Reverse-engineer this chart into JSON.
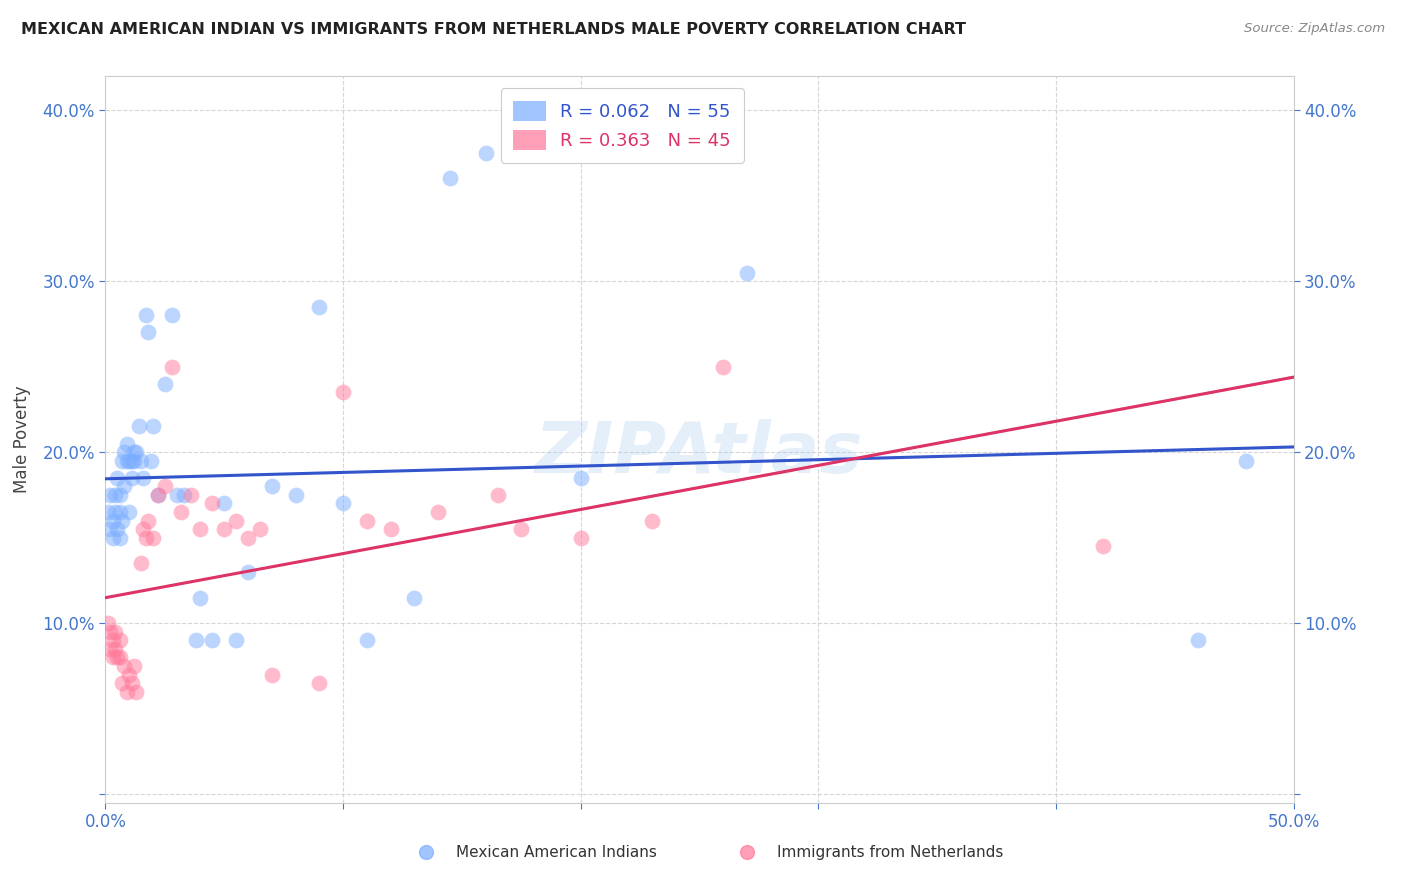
{
  "title": "MEXICAN AMERICAN INDIAN VS IMMIGRANTS FROM NETHERLANDS MALE POVERTY CORRELATION CHART",
  "source": "Source: ZipAtlas.com",
  "ylabel_label": "Male Poverty",
  "xlim": [
    0.0,
    0.5
  ],
  "ylim": [
    -0.005,
    0.42
  ],
  "xtick_positions": [
    0.0,
    0.1,
    0.2,
    0.3,
    0.4,
    0.5
  ],
  "xticklabels": [
    "0.0%",
    "",
    "",
    "",
    "",
    "50.0%"
  ],
  "ytick_positions": [
    0.0,
    0.1,
    0.2,
    0.3,
    0.4
  ],
  "yticklabels": [
    "",
    "10.0%",
    "20.0%",
    "30.0%",
    "40.0%"
  ],
  "blue_color": "#7aadff",
  "pink_color": "#ff7799",
  "trendline_blue_color": "#3355cc",
  "trendline_pink_color": "#dd3366",
  "trendline_dashed_color": "#ccbbbb",
  "watermark": "ZIPAtlas",
  "legend_blue_R": "0.062",
  "legend_blue_N": "55",
  "legend_pink_R": "0.363",
  "legend_pink_N": "45",
  "legend_label_blue": "Mexican American Indians",
  "legend_label_pink": "Immigrants from Netherlands",
  "blue_x": [
    0.001,
    0.002,
    0.002,
    0.003,
    0.003,
    0.004,
    0.004,
    0.005,
    0.005,
    0.006,
    0.006,
    0.006,
    0.007,
    0.007,
    0.008,
    0.008,
    0.009,
    0.009,
    0.01,
    0.01,
    0.011,
    0.011,
    0.012,
    0.012,
    0.013,
    0.014,
    0.015,
    0.016,
    0.017,
    0.018,
    0.019,
    0.02,
    0.022,
    0.025,
    0.028,
    0.03,
    0.033,
    0.038,
    0.04,
    0.045,
    0.05,
    0.055,
    0.06,
    0.07,
    0.08,
    0.09,
    0.1,
    0.11,
    0.13,
    0.145,
    0.16,
    0.2,
    0.27,
    0.46,
    0.48
  ],
  "blue_y": [
    0.165,
    0.175,
    0.155,
    0.15,
    0.16,
    0.165,
    0.175,
    0.185,
    0.155,
    0.15,
    0.165,
    0.175,
    0.16,
    0.195,
    0.2,
    0.18,
    0.195,
    0.205,
    0.165,
    0.195,
    0.195,
    0.185,
    0.2,
    0.195,
    0.2,
    0.215,
    0.195,
    0.185,
    0.28,
    0.27,
    0.195,
    0.215,
    0.175,
    0.24,
    0.28,
    0.175,
    0.175,
    0.09,
    0.115,
    0.09,
    0.17,
    0.09,
    0.13,
    0.18,
    0.175,
    0.285,
    0.17,
    0.09,
    0.115,
    0.36,
    0.375,
    0.185,
    0.305,
    0.09,
    0.195
  ],
  "pink_x": [
    0.001,
    0.002,
    0.002,
    0.003,
    0.003,
    0.004,
    0.004,
    0.005,
    0.006,
    0.006,
    0.007,
    0.008,
    0.009,
    0.01,
    0.011,
    0.012,
    0.013,
    0.015,
    0.016,
    0.017,
    0.018,
    0.02,
    0.022,
    0.025,
    0.028,
    0.032,
    0.036,
    0.04,
    0.045,
    0.05,
    0.055,
    0.06,
    0.065,
    0.07,
    0.09,
    0.1,
    0.11,
    0.12,
    0.14,
    0.165,
    0.175,
    0.2,
    0.23,
    0.26,
    0.42
  ],
  "pink_y": [
    0.1,
    0.095,
    0.085,
    0.09,
    0.08,
    0.085,
    0.095,
    0.08,
    0.09,
    0.08,
    0.065,
    0.075,
    0.06,
    0.07,
    0.065,
    0.075,
    0.06,
    0.135,
    0.155,
    0.15,
    0.16,
    0.15,
    0.175,
    0.18,
    0.25,
    0.165,
    0.175,
    0.155,
    0.17,
    0.155,
    0.16,
    0.15,
    0.155,
    0.07,
    0.065,
    0.235,
    0.16,
    0.155,
    0.165,
    0.175,
    0.155,
    0.15,
    0.16,
    0.25,
    0.145
  ]
}
